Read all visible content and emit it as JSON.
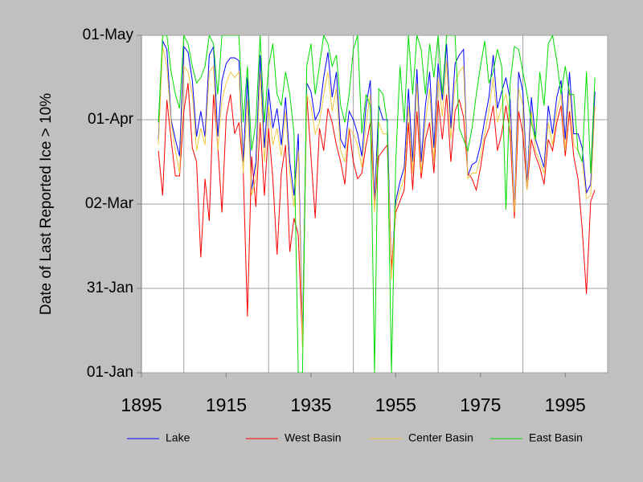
{
  "chart_data": {
    "type": "line",
    "y_label": "Date of Last Reported Ice > 10%",
    "x": [
      1899,
      1900,
      1901,
      1902,
      1903,
      1904,
      1905,
      1906,
      1907,
      1908,
      1909,
      1910,
      1911,
      1912,
      1913,
      1914,
      1915,
      1916,
      1917,
      1918,
      1919,
      1920,
      1921,
      1922,
      1923,
      1924,
      1925,
      1926,
      1927,
      1928,
      1929,
      1930,
      1931,
      1932,
      1933,
      1934,
      1935,
      1936,
      1937,
      1938,
      1939,
      1940,
      1941,
      1942,
      1943,
      1944,
      1945,
      1946,
      1947,
      1948,
      1949,
      1950,
      1951,
      1952,
      1953,
      1954,
      1955,
      1956,
      1957,
      1958,
      1959,
      1960,
      1961,
      1962,
      1963,
      1964,
      1965,
      1966,
      1967,
      1968,
      1969,
      1970,
      1971,
      1972,
      1973,
      1974,
      1975,
      1976,
      1977,
      1978,
      1979,
      1980,
      1981,
      1982,
      1983,
      1984,
      1985,
      1986,
      1987,
      1988,
      1989,
      1990,
      1991,
      1992,
      1993,
      1994,
      1995,
      1996,
      1997,
      1998,
      1999,
      2000,
      2001,
      2002
    ],
    "series": [
      {
        "name": "Lake",
        "color": "#0000ff",
        "values": [
          84,
          119,
          116,
          91,
          84,
          78,
          117,
          115,
          105,
          85,
          94,
          85,
          114,
          117,
          85,
          105,
          111,
          113,
          113,
          112,
          76,
          106,
          66,
          76,
          114,
          81,
          102,
          88,
          95,
          82,
          99,
          76,
          64,
          86,
          13,
          104,
          101,
          91,
          94,
          106,
          115,
          99,
          108,
          84,
          81,
          94,
          91,
          86,
          78,
          96,
          105,
          62,
          96,
          91,
          91,
          36,
          62,
          69,
          74,
          102,
          76,
          109,
          76,
          96,
          108,
          81,
          111,
          98,
          118,
          88,
          111,
          114,
          116,
          71,
          75,
          76,
          82,
          91,
          99,
          114,
          95,
          101,
          106,
          98,
          59,
          108,
          101,
          68,
          99,
          84,
          79,
          74,
          96,
          86,
          99,
          105,
          84,
          108,
          86,
          86,
          81,
          65,
          68,
          101
        ]
      },
      {
        "name": "West Basin",
        "color": "#ff0000",
        "values": [
          80,
          64,
          98,
          84,
          71,
          71,
          94,
          104,
          81,
          76,
          42,
          70,
          55,
          100,
          82,
          58,
          92,
          100,
          86,
          90,
          74,
          21,
          78,
          60,
          90,
          64,
          88,
          70,
          43,
          72,
          82,
          44,
          56,
          50,
          11,
          100,
          78,
          56,
          88,
          80,
          95,
          90,
          82,
          76,
          68,
          88,
          76,
          70,
          72,
          82,
          90,
          60,
          78,
          80,
          82,
          38,
          58,
          62,
          66,
          90,
          66,
          94,
          70,
          84,
          90,
          72,
          98,
          84,
          100,
          76,
          94,
          98,
          92,
          72,
          70,
          66,
          74,
          84,
          88,
          96,
          80,
          86,
          96,
          86,
          56,
          94,
          86,
          66,
          84,
          78,
          74,
          68,
          84,
          80,
          90,
          96,
          78,
          94,
          78,
          70,
          52,
          29,
          62,
          66
        ]
      },
      {
        "name": "Center Basin",
        "color": "#f0c840",
        "values": [
          82,
          117,
          110,
          90,
          80,
          72,
          110,
          108,
          100,
          80,
          88,
          82,
          108,
          110,
          80,
          98,
          104,
          108,
          106,
          108,
          72,
          98,
          64,
          70,
          108,
          76,
          96,
          82,
          88,
          78,
          94,
          72,
          60,
          80,
          10,
          100,
          96,
          86,
          90,
          100,
          108,
          94,
          102,
          80,
          76,
          88,
          86,
          82,
          74,
          90,
          100,
          58,
          90,
          86,
          86,
          34,
          60,
          66,
          70,
          96,
          72,
          104,
          72,
          90,
          102,
          76,
          106,
          92,
          112,
          84,
          104,
          108,
          110,
          70,
          72,
          72,
          78,
          86,
          94,
          106,
          90,
          96,
          100,
          92,
          58,
          102,
          96,
          66,
          94,
          80,
          76,
          72,
          90,
          82,
          94,
          100,
          80,
          102,
          82,
          80,
          76,
          63,
          64,
          96
        ]
      },
      {
        "name": "East Basin",
        "color": "#00dd00",
        "values": [
          90,
          121,
          121,
          108,
          100,
          95,
          121,
          118,
          110,
          104,
          106,
          110,
          121,
          118,
          100,
          121,
          121,
          121,
          121,
          121,
          90,
          110,
          80,
          90,
          121,
          90,
          110,
          118,
          100,
          96,
          108,
          100,
          86,
          1,
          1,
          110,
          118,
          100,
          110,
          121,
          118,
          110,
          114,
          96,
          90,
          100,
          116,
          121,
          86,
          100,
          96,
          1,
          102,
          100,
          90,
          1,
          76,
          110,
          90,
          121,
          100,
          121,
          116,
          100,
          118,
          106,
          121,
          100,
          121,
          121,
          121,
          88,
          84,
          80,
          88,
          100,
          110,
          119,
          104,
          108,
          116,
          110,
          59,
          104,
          117,
          116,
          108,
          100,
          90,
          84,
          108,
          96,
          118,
          121,
          112,
          100,
          110,
          100,
          100,
          80,
          76,
          108,
          72,
          106
        ]
      }
    ],
    "xlim": [
      1895,
      2005
    ],
    "xticks": [
      1895,
      1915,
      1935,
      1955,
      1975,
      1995
    ],
    "xgrid": [
      1905,
      1925,
      1945,
      1965,
      1985,
      2005
    ],
    "ylim": [
      1,
      121
    ],
    "yticks": [
      {
        "value": 1,
        "label": "01-Jan"
      },
      {
        "value": 31,
        "label": "31-Jan"
      },
      {
        "value": 61,
        "label": "02-Mar"
      },
      {
        "value": 91,
        "label": "01-Apr"
      },
      {
        "value": 121,
        "label": "01-May"
      }
    ],
    "grid": true,
    "legend": "bottom"
  }
}
